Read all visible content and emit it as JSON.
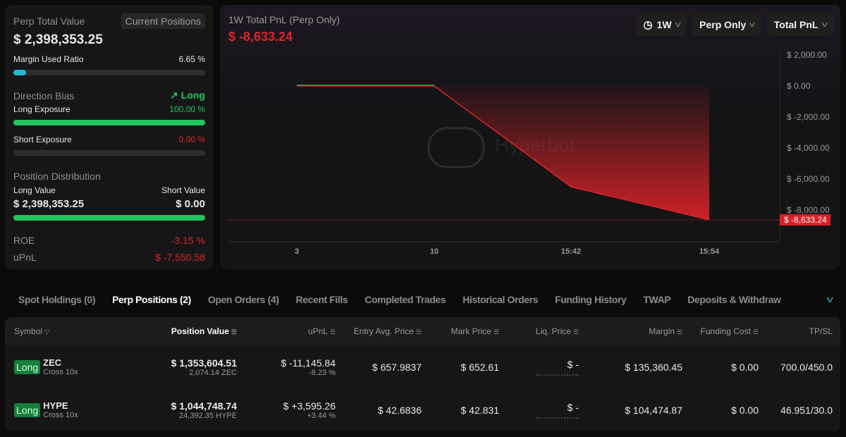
{
  "summary": {
    "title": "Perp Total Value",
    "current_positions_btn": "Current Positions",
    "total_value": "$ 2,398,353.25",
    "margin_label": "Margin Used Ratio",
    "margin_value": "6.65 %",
    "margin_fraction": 0.0665,
    "direction_label": "Direction Bias",
    "direction_value": "Long",
    "long_exposure_label": "Long Exposure",
    "long_exposure_value": "100.00 %",
    "long_fraction": 1.0,
    "short_exposure_label": "Short Exposure",
    "short_exposure_value": "0.00 %",
    "short_fraction": 0.0,
    "distribution_label": "Position Distribution",
    "long_value_label": "Long Value",
    "short_value_label": "Short Value",
    "long_value": "$ 2,398,353.25",
    "short_value": "$ 0.00",
    "roe_label": "ROE",
    "roe_value": "-3.15 %",
    "upnl_label": "uPnL",
    "upnl_value": "$ -7,550.58"
  },
  "chart_header": {
    "title": "1W Total PnL (Perp Only)",
    "value": "$ -8,633.24",
    "period": "1W",
    "scope": "Perp Only",
    "metric": "Total PnL",
    "watermark": "Hyperbot"
  },
  "chart_data": {
    "type": "area",
    "x": [
      "3",
      "10",
      "15:42",
      "15:54"
    ],
    "values": [
      0,
      0,
      -6500,
      -8633.24
    ],
    "ylim": [
      -9500,
      2500
    ],
    "yticks": [
      2000,
      0,
      -2000,
      -4000,
      -6000,
      -8000
    ],
    "ytick_labels": [
      "$ 2,000.00",
      "$ 0.00",
      "$ -2,000.00",
      "$ -4,000.00",
      "$ -6,000.00",
      "$ -8,000.00"
    ],
    "current_label": "$ -8,633.24",
    "colors": {
      "negative": "#e0242a",
      "positive": "#22c55e"
    }
  },
  "tabs": [
    "Spot Holdings (0)",
    "Perp Positions (2)",
    "Open Orders (4)",
    "Recent Fills",
    "Completed Trades",
    "Historical Orders",
    "Funding History",
    "TWAP",
    "Deposits & Withdraw"
  ],
  "active_tab": 1,
  "table": {
    "headers": [
      "Symbol",
      "Position Value",
      "uPnL",
      "Entry Avg. Price",
      "Mark Price",
      "Liq. Price",
      "Margin",
      "Funding Cost",
      "TP/SL"
    ],
    "rows": [
      {
        "side": "Long",
        "symbol": "ZEC",
        "mode": "Cross 10x",
        "value": "$ 1,353,604.51",
        "size": "2,074.14 ZEC",
        "upnl": "$ -11,145.84",
        "upnl_pct": "-8.23 %",
        "upnl_sign": "neg",
        "entry": "$ 657.9837",
        "mark": "$ 652.61",
        "liq": "$ -",
        "margin": "$ 135,360.45",
        "funding": "$ 0.00",
        "tpsl": "700.0/450.0"
      },
      {
        "side": "Long",
        "symbol": "HYPE",
        "mode": "Cross 10x",
        "value": "$ 1,044,748.74",
        "size": "24,392.35 HYPE",
        "upnl": "$ +3,595.26",
        "upnl_pct": "+3.44 %",
        "upnl_sign": "pos",
        "entry": "$ 42.6836",
        "mark": "$ 42.831",
        "liq": "$ -",
        "margin": "$ 104,474.87",
        "funding": "$ 0.00",
        "tpsl": "46.951/30.0"
      }
    ]
  }
}
